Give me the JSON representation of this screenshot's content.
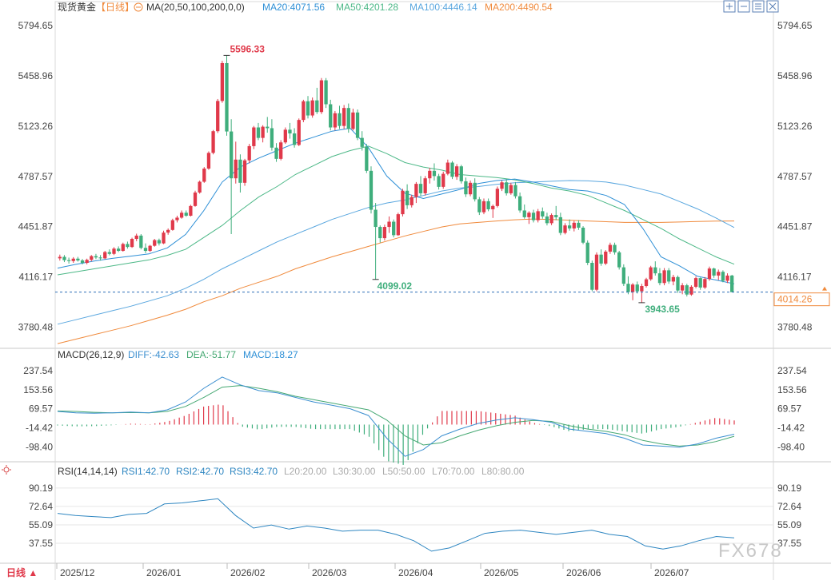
{
  "header": {
    "instrument": "现货黄金",
    "period": "【日线】",
    "ma_params": "MA(20,50,100,200,0,0)",
    "ma20": "MA20:4071.56",
    "ma50": "MA50:4201.28",
    "ma100": "MA100:4446.14",
    "ma200": "MA200:4490.54"
  },
  "macd_header": {
    "params": "MACD(26,12,9)",
    "diff": "DIFF:-42.63",
    "dea": "DEA:-51.77",
    "macd": "MACD:18.27"
  },
  "rsi_header": {
    "params": "RSI(14,14,14)",
    "rsi1": "RSI1:42.70",
    "rsi2": "RSI2:42.70",
    "rsi3": "RSI3:42.70",
    "l20": "L20:20.00",
    "l30": "L30:30.00",
    "l50": "L50:50.00",
    "l70": "L70:70.00",
    "l80": "L80:80.00"
  },
  "footer": {
    "period_button": "日线 ▲",
    "watermark": "FX678"
  },
  "annotations": {
    "high": "5596.33",
    "low1": "4099.02",
    "low2": "3943.65",
    "last_price": "4014.26"
  },
  "colors": {
    "up": "#e0394a",
    "down": "#3fae7c",
    "ma20": "#2d8fd6",
    "ma50": "#4cb887",
    "ma100": "#5aa7df",
    "ma200": "#f08a3c",
    "diff": "#3c8fd0",
    "dea": "#45a872",
    "rsi": "#2e86c1",
    "grid": "#e6e6e6",
    "text": "#444444"
  },
  "icons": [
    "zoom-in-icon",
    "zoom-out-icon",
    "settings-icon",
    "close-icon",
    "sun-icon"
  ],
  "chart_data": [
    {
      "type": "candlestick",
      "title": "现货黄金【日线】",
      "x_labels": [
        "2025/12",
        "2026/01",
        "2026/02",
        "2026/03",
        "2026/04",
        "2026/05",
        "2026/06",
        "2026/07"
      ],
      "y_ticks": [
        "5794.65",
        "5458.96",
        "5123.26",
        "4787.57",
        "4451.87",
        "4116.17",
        "3780.48"
      ],
      "ylim": [
        3660,
        5860
      ],
      "ohlc": [
        [
          4240,
          4265,
          4225,
          4250
        ],
        [
          4250,
          4262,
          4215,
          4228
        ],
        [
          4228,
          4245,
          4205,
          4222
        ],
        [
          4222,
          4248,
          4210,
          4238
        ],
        [
          4238,
          4250,
          4218,
          4226
        ],
        [
          4226,
          4236,
          4200,
          4210
        ],
        [
          4210,
          4238,
          4200,
          4230
        ],
        [
          4230,
          4262,
          4220,
          4255
        ],
        [
          4255,
          4270,
          4235,
          4246
        ],
        [
          4246,
          4262,
          4225,
          4240
        ],
        [
          4240,
          4290,
          4235,
          4282
        ],
        [
          4282,
          4300,
          4260,
          4270
        ],
        [
          4270,
          4315,
          4262,
          4305
        ],
        [
          4305,
          4320,
          4282,
          4290
        ],
        [
          4290,
          4345,
          4285,
          4336
        ],
        [
          4336,
          4352,
          4305,
          4316
        ],
        [
          4316,
          4378,
          4310,
          4370
        ],
        [
          4370,
          4405,
          4355,
          4392
        ],
        [
          4392,
          4402,
          4300,
          4310
        ],
        [
          4310,
          4340,
          4275,
          4290
        ],
        [
          4290,
          4330,
          4282,
          4324
        ],
        [
          4324,
          4370,
          4318,
          4362
        ],
        [
          4362,
          4372,
          4326,
          4340
        ],
        [
          4340,
          4425,
          4335,
          4412
        ],
        [
          4412,
          4440,
          4398,
          4430
        ],
        [
          4430,
          4505,
          4425,
          4495
        ],
        [
          4495,
          4525,
          4480,
          4512
        ],
        [
          4512,
          4560,
          4505,
          4545
        ],
        [
          4545,
          4560,
          4518,
          4525
        ],
        [
          4525,
          4598,
          4520,
          4590
        ],
        [
          4590,
          4692,
          4585,
          4680
        ],
        [
          4680,
          4760,
          4672,
          4752
        ],
        [
          4752,
          4850,
          4745,
          4840
        ],
        [
          4840,
          4955,
          4832,
          4945
        ],
        [
          4945,
          5098,
          4935,
          5090
        ],
        [
          5090,
          5305,
          5078,
          5292
        ],
        [
          5292,
          5560,
          5280,
          5545
        ],
        [
          5545,
          5596,
          5060,
          5088
        ],
        [
          5088,
          5170,
          4402,
          4775
        ],
        [
          4775,
          5020,
          4740,
          4900
        ],
        [
          4900,
          4935,
          4680,
          4745
        ],
        [
          4745,
          4905,
          4725,
          4895
        ],
        [
          4895,
          5005,
          4875,
          4990
        ],
        [
          4990,
          5125,
          4970,
          5115
        ],
        [
          5115,
          5145,
          5030,
          5045
        ],
        [
          5045,
          5130,
          5015,
          5120
        ],
        [
          5120,
          5185,
          5080,
          5110
        ],
        [
          5110,
          5170,
          4960,
          4980
        ],
        [
          4980,
          5010,
          4885,
          4905
        ],
        [
          4905,
          5030,
          4895,
          5015
        ],
        [
          5015,
          5115,
          5005,
          5100
        ],
        [
          5100,
          5145,
          5040,
          5075
        ],
        [
          5075,
          5110,
          4980,
          4998
        ],
        [
          4998,
          5175,
          4990,
          5165
        ],
        [
          5165,
          5300,
          5150,
          5290
        ],
        [
          5290,
          5325,
          5175,
          5195
        ],
        [
          5195,
          5315,
          5180,
          5296
        ],
        [
          5296,
          5380,
          5205,
          5218
        ],
        [
          5218,
          5445,
          5205,
          5430
        ],
        [
          5430,
          5445,
          5245,
          5270
        ],
        [
          5270,
          5300,
          5095,
          5115
        ],
        [
          5115,
          5225,
          5095,
          5210
        ],
        [
          5210,
          5260,
          5105,
          5125
        ],
        [
          5125,
          5265,
          5105,
          5245
        ],
        [
          5245,
          5275,
          5080,
          5105
        ],
        [
          5105,
          5240,
          5095,
          5215
        ],
        [
          5215,
          5235,
          5030,
          5045
        ],
        [
          5045,
          5090,
          4960,
          4985
        ],
        [
          4985,
          5005,
          4810,
          4825
        ],
        [
          4825,
          4855,
          4540,
          4565
        ],
        [
          4565,
          4610,
          4099,
          4450
        ],
        [
          4450,
          4460,
          4345,
          4375
        ],
        [
          4375,
          4465,
          4360,
          4450
        ],
        [
          4450,
          4520,
          4410,
          4485
        ],
        [
          4485,
          4500,
          4380,
          4395
        ],
        [
          4395,
          4545,
          4390,
          4535
        ],
        [
          4535,
          4705,
          4520,
          4692
        ],
        [
          4692,
          4735,
          4570,
          4595
        ],
        [
          4595,
          4665,
          4580,
          4650
        ],
        [
          4650,
          4750,
          4610,
          4738
        ],
        [
          4738,
          4790,
          4655,
          4675
        ],
        [
          4675,
          4790,
          4660,
          4775
        ],
        [
          4775,
          4845,
          4740,
          4825
        ],
        [
          4825,
          4875,
          4760,
          4790
        ],
        [
          4790,
          4805,
          4700,
          4718
        ],
        [
          4718,
          4820,
          4705,
          4805
        ],
        [
          4805,
          4900,
          4795,
          4880
        ],
        [
          4880,
          4890,
          4770,
          4785
        ],
        [
          4785,
          4870,
          4765,
          4855
        ],
        [
          4855,
          4865,
          4740,
          4755
        ],
        [
          4755,
          4780,
          4650,
          4668
        ],
        [
          4668,
          4760,
          4655,
          4745
        ],
        [
          4745,
          4775,
          4620,
          4635
        ],
        [
          4635,
          4650,
          4530,
          4548
        ],
        [
          4548,
          4640,
          4535,
          4622
        ],
        [
          4622,
          4640,
          4555,
          4568
        ],
        [
          4568,
          4600,
          4510,
          4590
        ],
        [
          4590,
          4720,
          4580,
          4705
        ],
        [
          4705,
          4760,
          4690,
          4748
        ],
        [
          4748,
          4770,
          4660,
          4675
        ],
        [
          4675,
          4745,
          4665,
          4730
        ],
        [
          4730,
          4750,
          4640,
          4655
        ],
        [
          4655,
          4680,
          4545,
          4560
        ],
        [
          4560,
          4600,
          4505,
          4515
        ],
        [
          4515,
          4555,
          4470,
          4545
        ],
        [
          4545,
          4565,
          4480,
          4495
        ],
        [
          4495,
          4570,
          4480,
          4555
        ],
        [
          4555,
          4580,
          4505,
          4520
        ],
        [
          4520,
          4545,
          4460,
          4475
        ],
        [
          4475,
          4540,
          4462,
          4530
        ],
        [
          4530,
          4590,
          4495,
          4515
        ],
        [
          4515,
          4545,
          4395,
          4410
        ],
        [
          4410,
          4475,
          4400,
          4460
        ],
        [
          4460,
          4500,
          4425,
          4440
        ],
        [
          4440,
          4490,
          4420,
          4478
        ],
        [
          4478,
          4495,
          4430,
          4445
        ],
        [
          4445,
          4455,
          4335,
          4345
        ],
        [
          4345,
          4360,
          4195,
          4210
        ],
        [
          4210,
          4225,
          4020,
          4030
        ],
        [
          4030,
          4280,
          4020,
          4265
        ],
        [
          4265,
          4300,
          4190,
          4205
        ],
        [
          4205,
          4295,
          4195,
          4285
        ],
        [
          4285,
          4345,
          4270,
          4330
        ],
        [
          4330,
          4345,
          4265,
          4280
        ],
        [
          4280,
          4290,
          4165,
          4180
        ],
        [
          4180,
          4200,
          4055,
          4070
        ],
        [
          4070,
          4120,
          4000,
          4015
        ],
        [
          4015,
          4075,
          3960,
          4065
        ],
        [
          4065,
          4085,
          4005,
          4020
        ],
        [
          4020,
          4070,
          3943,
          4055
        ],
        [
          4055,
          4110,
          4045,
          4100
        ],
        [
          4100,
          4190,
          4090,
          4180
        ],
        [
          4180,
          4220,
          4125,
          4140
        ],
        [
          4140,
          4175,
          4060,
          4075
        ],
        [
          4075,
          4175,
          4060,
          4160
        ],
        [
          4160,
          4175,
          4070,
          4085
        ],
        [
          4085,
          4130,
          4060,
          4115
        ],
        [
          4115,
          4125,
          4010,
          4025
        ],
        [
          4025,
          4075,
          4000,
          4060
        ],
        [
          4060,
          4070,
          3985,
          3998
        ],
        [
          3998,
          4060,
          3990,
          4050
        ],
        [
          4050,
          4120,
          4040,
          4108
        ],
        [
          4108,
          4112,
          4030,
          4045
        ],
        [
          4045,
          4115,
          4035,
          4102
        ],
        [
          4102,
          4185,
          4090,
          4172
        ],
        [
          4172,
          4178,
          4110,
          4125
        ],
        [
          4125,
          4165,
          4095,
          4150
        ],
        [
          4150,
          4160,
          4080,
          4090
        ],
        [
          4090,
          4140,
          4075,
          4125
        ],
        [
          4125,
          4130,
          4020,
          4014
        ]
      ],
      "ma20": [
        4175,
        4200,
        4222,
        4240,
        4255,
        4270,
        4310,
        4400,
        4560,
        4750,
        4850,
        4910,
        4960,
        5010,
        5050,
        5090,
        5110,
        4980,
        4790,
        4675,
        4640,
        4670,
        4700,
        4740,
        4760,
        4770,
        4750,
        4725,
        4700,
        4690,
        4660,
        4600,
        4440,
        4250,
        4190,
        4120,
        4095,
        4070
      ],
      "ma50": [
        4130,
        4150,
        4170,
        4190,
        4210,
        4230,
        4260,
        4300,
        4380,
        4460,
        4560,
        4650,
        4720,
        4800,
        4860,
        4920,
        4960,
        4990,
        4940,
        4880,
        4850,
        4830,
        4800,
        4790,
        4780,
        4765,
        4740,
        4710,
        4690,
        4660,
        4610,
        4560,
        4500,
        4440,
        4370,
        4310,
        4250,
        4201
      ],
      "ma100": [
        3800,
        3830,
        3860,
        3890,
        3920,
        3955,
        3990,
        4040,
        4100,
        4170,
        4230,
        4290,
        4350,
        4400,
        4450,
        4500,
        4540,
        4580,
        4610,
        4630,
        4660,
        4690,
        4710,
        4720,
        4735,
        4745,
        4750,
        4755,
        4760,
        4758,
        4750,
        4730,
        4700,
        4670,
        4620,
        4570,
        4510,
        4446
      ],
      "ma200": [
        3670,
        3700,
        3730,
        3760,
        3790,
        3825,
        3860,
        3900,
        3950,
        3990,
        4040,
        4080,
        4120,
        4170,
        4210,
        4250,
        4285,
        4320,
        4355,
        4390,
        4420,
        4450,
        4470,
        4480,
        4490,
        4498,
        4503,
        4500,
        4495,
        4490,
        4485,
        4480,
        4480,
        4480,
        4483,
        4486,
        4489,
        4490
      ]
    },
    {
      "type": "line",
      "title": "MACD(26,12,9)",
      "y_ticks": [
        "237.54",
        "153.56",
        "69.57",
        "-14.42",
        "-98.40"
      ],
      "ylim": [
        -150,
        280
      ],
      "series": [
        {
          "name": "DIFF",
          "values": [
            58,
            52,
            50,
            52,
            55,
            52,
            65,
            100,
            160,
            210,
            175,
            150,
            140,
            120,
            100,
            85,
            70,
            40,
            -60,
            -140,
            -110,
            -50,
            -20,
            5,
            20,
            30,
            22,
            10,
            -20,
            -30,
            -40,
            -60,
            -90,
            -95,
            -100,
            -85,
            -60,
            -42.63
          ]
        },
        {
          "name": "DEA",
          "values": [
            60,
            58,
            54,
            52,
            53,
            52,
            58,
            80,
            120,
            165,
            172,
            160,
            145,
            125,
            110,
            95,
            80,
            65,
            20,
            -50,
            -90,
            -80,
            -50,
            -25,
            -5,
            10,
            18,
            14,
            -5,
            -20,
            -30,
            -45,
            -70,
            -85,
            -95,
            -90,
            -75,
            -51.77
          ]
        },
        {
          "name": "MACD",
          "values": [
            -4,
            -8,
            -7,
            -3,
            4,
            1,
            13,
            40,
            80,
            90,
            -8,
            -22,
            -10,
            -10,
            -20,
            -20,
            -20,
            -50,
            -160,
            -180,
            -40,
            60,
            60,
            60,
            50,
            40,
            8,
            -8,
            -30,
            -20,
            -20,
            -30,
            -40,
            -20,
            -10,
            10,
            30,
            18.27
          ]
        }
      ]
    },
    {
      "type": "line",
      "title": "RSI(14,14,14)",
      "y_ticks": [
        "90.19",
        "72.64",
        "55.09",
        "37.55"
      ],
      "ylim": [
        20,
        100
      ],
      "series": [
        {
          "name": "RSI1",
          "values": [
            66,
            64,
            63,
            62,
            65,
            66,
            75,
            76,
            78,
            80,
            64,
            52,
            55,
            51,
            54,
            52,
            49,
            50,
            50,
            46,
            40,
            30,
            33,
            40,
            47,
            49,
            50,
            48,
            46,
            48,
            50,
            46,
            44,
            35,
            32,
            35,
            40,
            44,
            42.7
          ]
        }
      ]
    }
  ]
}
